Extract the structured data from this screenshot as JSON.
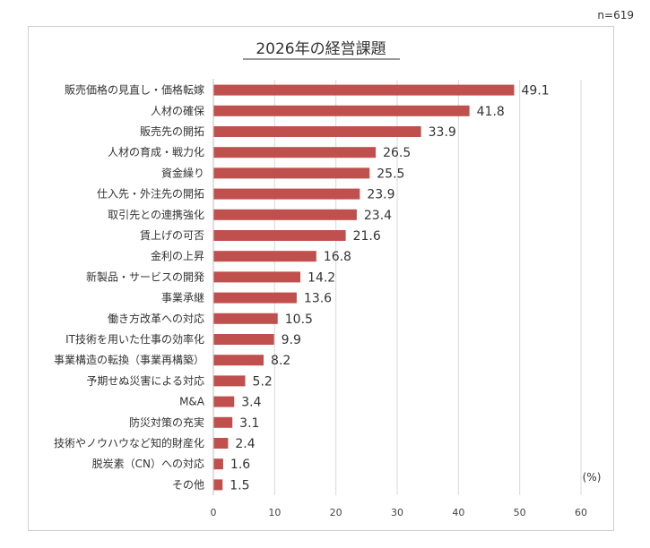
{
  "n_label": "n=619",
  "chart_data": {
    "type": "bar",
    "orientation": "horizontal",
    "title": "2026年の経営課題",
    "unit_label": "(%)",
    "xlim": [
      0,
      60
    ],
    "xticks": [
      0,
      10,
      20,
      30,
      40,
      50,
      60
    ],
    "bar_color": "#c0504d",
    "categories": [
      "販売価格の見直し・価格転嫁",
      "人材の確保",
      "販売先の開拓",
      "人材の育成・戦力化",
      "資金繰り",
      "仕入先・外注先の開拓",
      "取引先との連携強化",
      "賃上げの可否",
      "金利の上昇",
      "新製品・サービスの開発",
      "事業承継",
      "働き方改革への対応",
      "IT技術を用いた仕事の効率化",
      "事業構造の転換（事業再構築）",
      "予期せぬ災害による対応",
      "M&A",
      "防災対策の充実",
      "技術やノウハウなど知的財産化",
      "脱炭素（CN）への対応",
      "その他"
    ],
    "values": [
      49.1,
      41.8,
      33.9,
      26.5,
      25.5,
      23.9,
      23.4,
      21.6,
      16.8,
      14.2,
      13.6,
      10.5,
      9.9,
      8.2,
      5.2,
      3.4,
      3.1,
      2.4,
      1.6,
      1.5
    ]
  }
}
